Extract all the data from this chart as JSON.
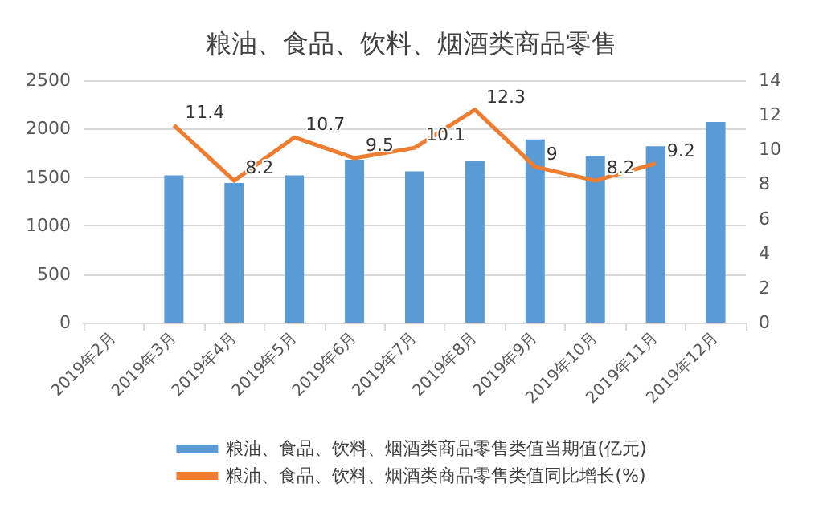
{
  "chart_data": {
    "type": "bar",
    "title": "粮油、食品、饮料、烟酒类商品零售",
    "categories": [
      "2019年2月",
      "2019年3月",
      "2019年4月",
      "2019年5月",
      "2019年6月",
      "2019年7月",
      "2019年8月",
      "2019年9月",
      "2019年10月",
      "2019年11月",
      "2019年12月"
    ],
    "series": [
      {
        "name": "粮油、食品、饮料、烟酒类商品零售类值当期值(亿元)",
        "color": "#5b9bd5",
        "values": [
          null,
          1520,
          1440,
          1520,
          1680,
          1560,
          1670,
          1890,
          1720,
          1820,
          2070
        ]
      },
      {
        "name": "粮油、食品、饮料、烟酒类商品零售类值同比增长(%)",
        "type": "line",
        "axis": "y2",
        "color": "#ed7d31",
        "values": [
          null,
          11.4,
          8.2,
          10.7,
          9.5,
          10.1,
          12.3,
          9,
          8.2,
          9.2,
          null
        ],
        "data_labels": true
      }
    ],
    "ylim": [
      0,
      2500
    ],
    "yticks": [
      0,
      500,
      1000,
      1500,
      2000,
      2500
    ],
    "y2lim": [
      0,
      14
    ],
    "y2ticks": [
      0,
      2,
      4,
      6,
      8,
      10,
      12,
      14
    ],
    "grid": "y",
    "legend": "bottom",
    "marker": "none"
  }
}
